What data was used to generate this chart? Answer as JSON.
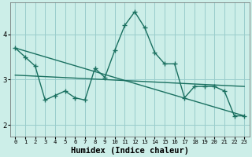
{
  "xlabel": "Humidex (Indice chaleur)",
  "bg_color": "#cceee8",
  "grid_color": "#99cccc",
  "line_color": "#1a7060",
  "ylim": [
    1.75,
    4.7
  ],
  "yticks": [
    2,
    3,
    4
  ],
  "xticks": [
    0,
    1,
    2,
    3,
    4,
    5,
    6,
    7,
    8,
    9,
    10,
    11,
    12,
    13,
    14,
    15,
    16,
    17,
    18,
    19,
    20,
    21,
    22,
    23
  ],
  "trend1_x": [
    0,
    23
  ],
  "trend1_y": [
    3.7,
    2.2
  ],
  "trend2_x": [
    0,
    23
  ],
  "trend2_y": [
    3.1,
    2.85
  ],
  "jagged_x": [
    0,
    1,
    2,
    3,
    4,
    5,
    6,
    7,
    8,
    9,
    10,
    11,
    12,
    13,
    14,
    15,
    16,
    17,
    18,
    19,
    20,
    21,
    22,
    23
  ],
  "jagged_y": [
    3.7,
    3.5,
    3.3,
    2.55,
    2.65,
    2.75,
    2.6,
    2.55,
    3.25,
    3.05,
    3.65,
    4.2,
    4.5,
    4.15,
    3.6,
    3.35,
    3.35,
    2.6,
    2.85,
    2.85,
    2.85,
    2.75,
    2.2,
    2.2
  ]
}
